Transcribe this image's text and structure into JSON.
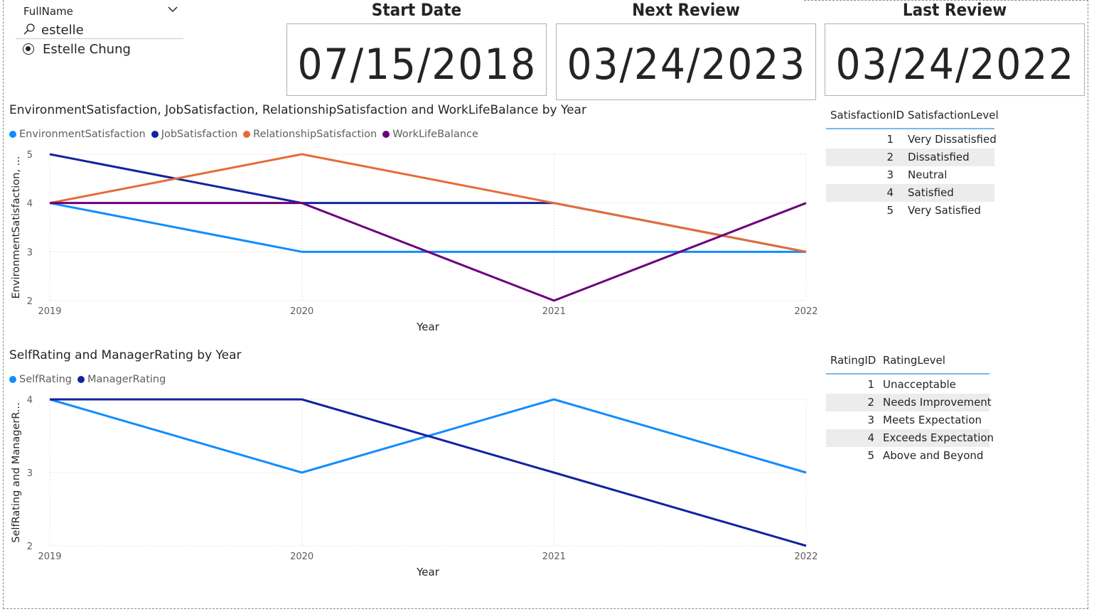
{
  "slicer": {
    "title": "FullName",
    "search_value": "estelle",
    "items": [
      {
        "label": "Estelle Chung",
        "selected": true
      }
    ]
  },
  "cards": [
    {
      "title": "Start Date",
      "value": "07/15/2018"
    },
    {
      "title": "Next Review",
      "value": "03/24/2023"
    },
    {
      "title": "Last Review",
      "value": "03/24/2022"
    }
  ],
  "colors": {
    "light_blue": "#118DFF",
    "dark_blue": "#12239E",
    "orange": "#E66C37",
    "purple": "#6B007B",
    "table_header_line": "#7fb6e8",
    "alt_row": "#ececec"
  },
  "satisfaction_table": {
    "headers": [
      "SatisfactionID",
      "SatisfactionLevel"
    ],
    "rows": [
      {
        "id": "1",
        "level": "Very Dissatisfied"
      },
      {
        "id": "2",
        "level": "Dissatisfied"
      },
      {
        "id": "3",
        "level": "Neutral"
      },
      {
        "id": "4",
        "level": "Satisfied"
      },
      {
        "id": "5",
        "level": "Very Satisfied"
      }
    ]
  },
  "rating_table": {
    "headers": [
      "RatingID",
      "RatingLevel"
    ],
    "rows": [
      {
        "id": "1",
        "level": "Unacceptable"
      },
      {
        "id": "2",
        "level": "Needs Improvement"
      },
      {
        "id": "3",
        "level": "Meets Expectation"
      },
      {
        "id": "4",
        "level": "Exceeds Expectation"
      },
      {
        "id": "5",
        "level": "Above and Beyond"
      }
    ]
  },
  "chart_data": [
    {
      "type": "line",
      "title": "EnvironmentSatisfaction, JobSatisfaction, RelationshipSatisfaction and WorkLifeBalance by Year",
      "xlabel": "Year",
      "ylabel": "EnvironmentSatisfaction, ...",
      "x": [
        "2019",
        "2020",
        "2021",
        "2022"
      ],
      "yticks": [
        2,
        3,
        4,
        5
      ],
      "ylim": [
        2,
        5
      ],
      "legend_position": "top-left",
      "grid": true,
      "series": [
        {
          "name": "EnvironmentSatisfaction",
          "color": "#118DFF",
          "values": [
            4,
            3,
            3,
            3
          ]
        },
        {
          "name": "JobSatisfaction",
          "color": "#12239E",
          "values": [
            5,
            4,
            4,
            3
          ]
        },
        {
          "name": "RelationshipSatisfaction",
          "color": "#E66C37",
          "values": [
            4,
            5,
            4,
            3
          ]
        },
        {
          "name": "WorkLifeBalance",
          "color": "#6B007B",
          "values": [
            4,
            4,
            2,
            4
          ]
        }
      ]
    },
    {
      "type": "line",
      "title": "SelfRating and ManagerRating by Year",
      "xlabel": "Year",
      "ylabel": "SelfRating and ManagerR...",
      "x": [
        "2019",
        "2020",
        "2021",
        "2022"
      ],
      "yticks": [
        2,
        3,
        4
      ],
      "ylim": [
        2,
        4
      ],
      "legend_position": "top-left",
      "grid": true,
      "series": [
        {
          "name": "SelfRating",
          "color": "#118DFF",
          "values": [
            4,
            3,
            4,
            3
          ]
        },
        {
          "name": "ManagerRating",
          "color": "#12239E",
          "values": [
            4,
            4,
            3,
            2
          ]
        }
      ]
    }
  ]
}
